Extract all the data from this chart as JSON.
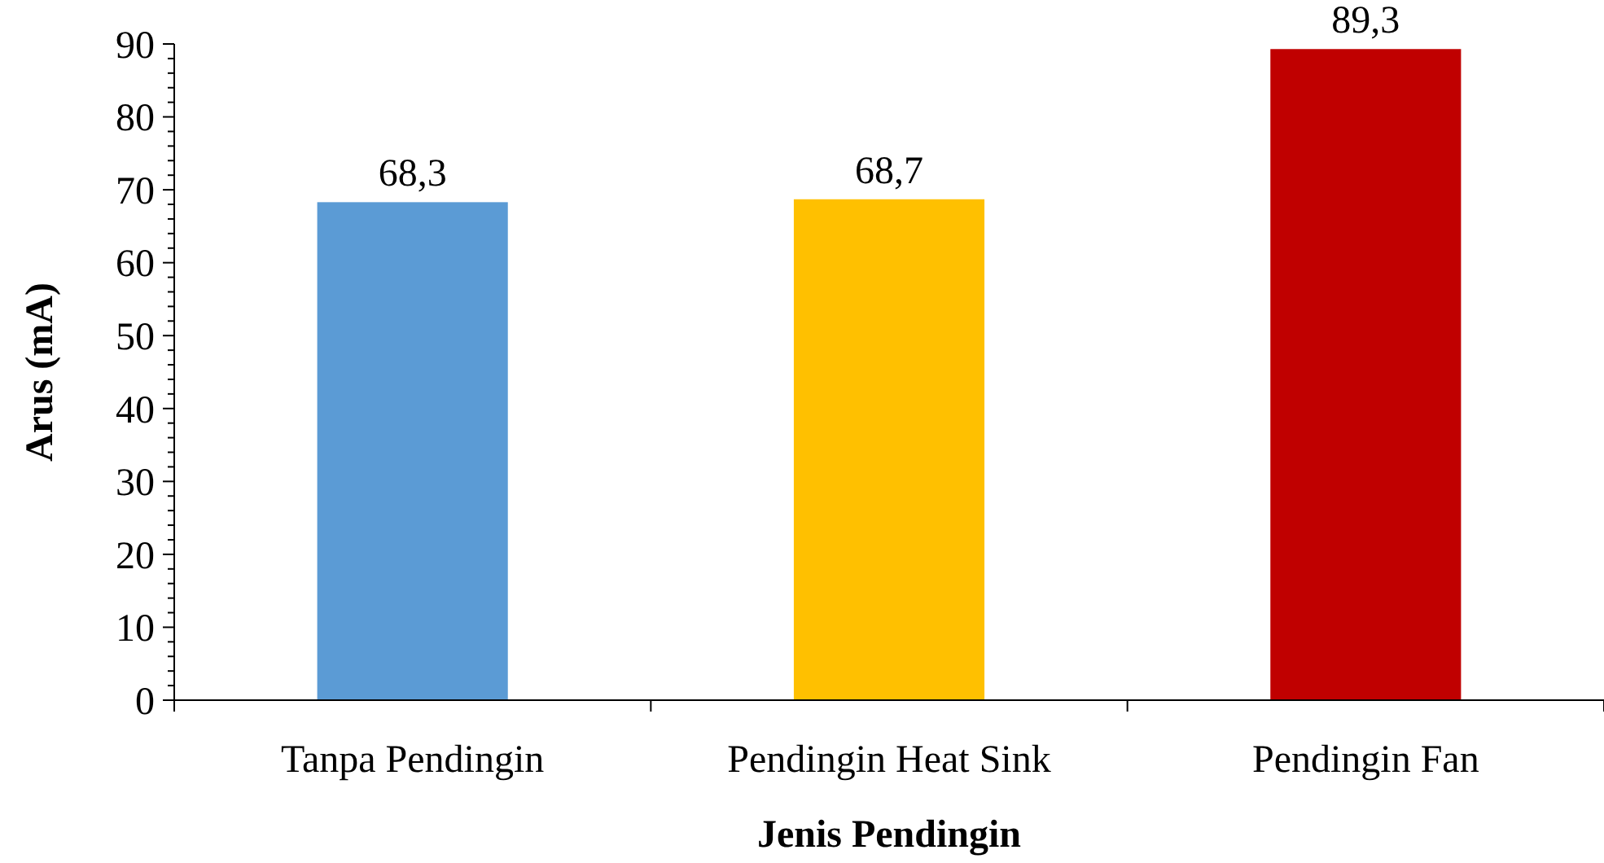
{
  "chart_data": {
    "type": "bar",
    "xlabel": "Jenis Pendingin",
    "ylabel": "Arus (mA)",
    "categories": [
      "Tanpa Pendingin",
      "Pendingin Heat Sink",
      "Pendingin Fan"
    ],
    "values": [
      68.3,
      68.7,
      89.3
    ],
    "colors": [
      "#5b9bd5",
      "#ffc000",
      "#c00000"
    ],
    "value_labels": [
      "68,3",
      "68,7",
      "89,3"
    ],
    "ylim": [
      0,
      90
    ],
    "yticks": [
      0,
      {
        "value": 2,
        "label": null
      },
      {
        "value": 4,
        "label": null
      },
      {
        "value": 6,
        "label": null
      },
      {
        "value": 8,
        "label": null
      },
      10,
      {
        "value": 12,
        "label": null
      },
      {
        "value": 14,
        "label": null
      },
      {
        "value": 16,
        "label": null
      },
      {
        "value": 18,
        "label": null
      },
      20,
      {
        "value": 22,
        "label": null
      },
      {
        "value": 24,
        "label": null
      },
      {
        "value": 26,
        "label": null
      },
      {
        "value": 28,
        "label": null
      },
      30,
      {
        "value": 32,
        "label": null
      },
      {
        "value": 34,
        "label": null
      },
      {
        "value": 36,
        "label": null
      },
      {
        "value": 38,
        "label": null
      },
      40,
      {
        "value": 42,
        "label": null
      },
      {
        "value": 44,
        "label": null
      },
      {
        "value": 46,
        "label": null
      },
      {
        "value": 48,
        "label": null
      },
      50,
      {
        "value": 52,
        "label": null
      },
      {
        "value": 54,
        "label": null
      },
      {
        "value": 56,
        "label": null
      },
      {
        "value": 58,
        "label": null
      },
      60,
      {
        "value": 62,
        "label": null
      },
      {
        "value": 64,
        "label": null
      },
      {
        "value": 66,
        "label": null
      },
      {
        "value": 68,
        "label": null
      },
      70,
      {
        "value": 72,
        "label": null
      },
      {
        "value": 74,
        "label": null
      },
      {
        "value": 76,
        "label": null
      },
      {
        "value": 78,
        "label": null
      },
      80,
      {
        "value": 82,
        "label": null
      },
      {
        "value": 84,
        "label": null
      },
      {
        "value": 86,
        "label": null
      },
      {
        "value": 88,
        "label": null
      },
      90
    ],
    "grid": false
  }
}
